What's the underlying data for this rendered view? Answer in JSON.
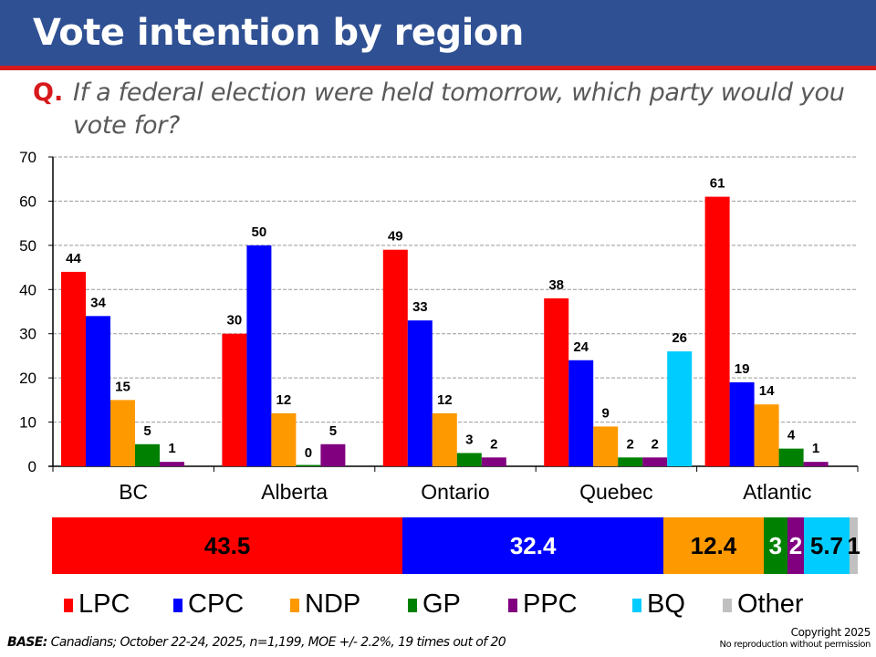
{
  "header": {
    "title": "Vote intention by region",
    "question_marker": "Q.",
    "question": "If a federal election were held tomorrow, which party would you vote for?"
  },
  "colors": {
    "LPC": "#ff0000",
    "CPC": "#0000ff",
    "NDP": "#ff9900",
    "GP": "#008000",
    "PPC": "#800080",
    "BQ": "#00ccff",
    "Other": "#c0c0c0",
    "header_bg": "#2f5093",
    "accent_red": "#d7191c"
  },
  "chart_data": [
    {
      "type": "bar",
      "title": "Vote intention by region",
      "xlabel": "",
      "ylabel": "",
      "ylim": [
        0,
        70
      ],
      "yticks": [
        0,
        10,
        20,
        30,
        40,
        50,
        60,
        70
      ],
      "grid": true,
      "categories": [
        "BC",
        "Alberta",
        "Ontario",
        "Quebec",
        "Atlantic"
      ],
      "series": [
        {
          "name": "LPC",
          "values": [
            44,
            30,
            49,
            38,
            61
          ]
        },
        {
          "name": "CPC",
          "values": [
            34,
            50,
            33,
            24,
            19
          ]
        },
        {
          "name": "NDP",
          "values": [
            15,
            12,
            12,
            9,
            14
          ]
        },
        {
          "name": "GP",
          "values": [
            5,
            0,
            3,
            2,
            4
          ]
        },
        {
          "name": "PPC",
          "values": [
            1,
            5,
            2,
            2,
            1
          ]
        },
        {
          "name": "BQ",
          "values": [
            null,
            null,
            null,
            26,
            null
          ]
        }
      ],
      "legend": "bottom"
    },
    {
      "type": "bar",
      "subtype": "stacked-horizontal",
      "title": "National",
      "categories": [
        "LPC",
        "CPC",
        "NDP",
        "GP",
        "PPC",
        "BQ",
        "Other"
      ],
      "values": [
        43.5,
        32.4,
        12.4,
        3,
        2,
        5.7,
        1
      ],
      "labels": [
        "43.5",
        "32.4",
        "12.4",
        "3",
        "2",
        "5.7",
        "1"
      ],
      "label_colors": [
        "#000000",
        "#ffffff",
        "#000000",
        "#ffffff",
        "#ffffff",
        "#000000",
        "#000000"
      ]
    }
  ],
  "legend": [
    "LPC",
    "CPC",
    "NDP",
    "GP",
    "PPC",
    "BQ",
    "Other"
  ],
  "footer": {
    "base_label": "BASE:",
    "base_text": " Canadians; October 22-24, 2025, n=1,199, MOE +/- 2.2%, 19 times out of 20",
    "copyright": "Copyright 2025",
    "notice": "No reproduction without permission"
  }
}
